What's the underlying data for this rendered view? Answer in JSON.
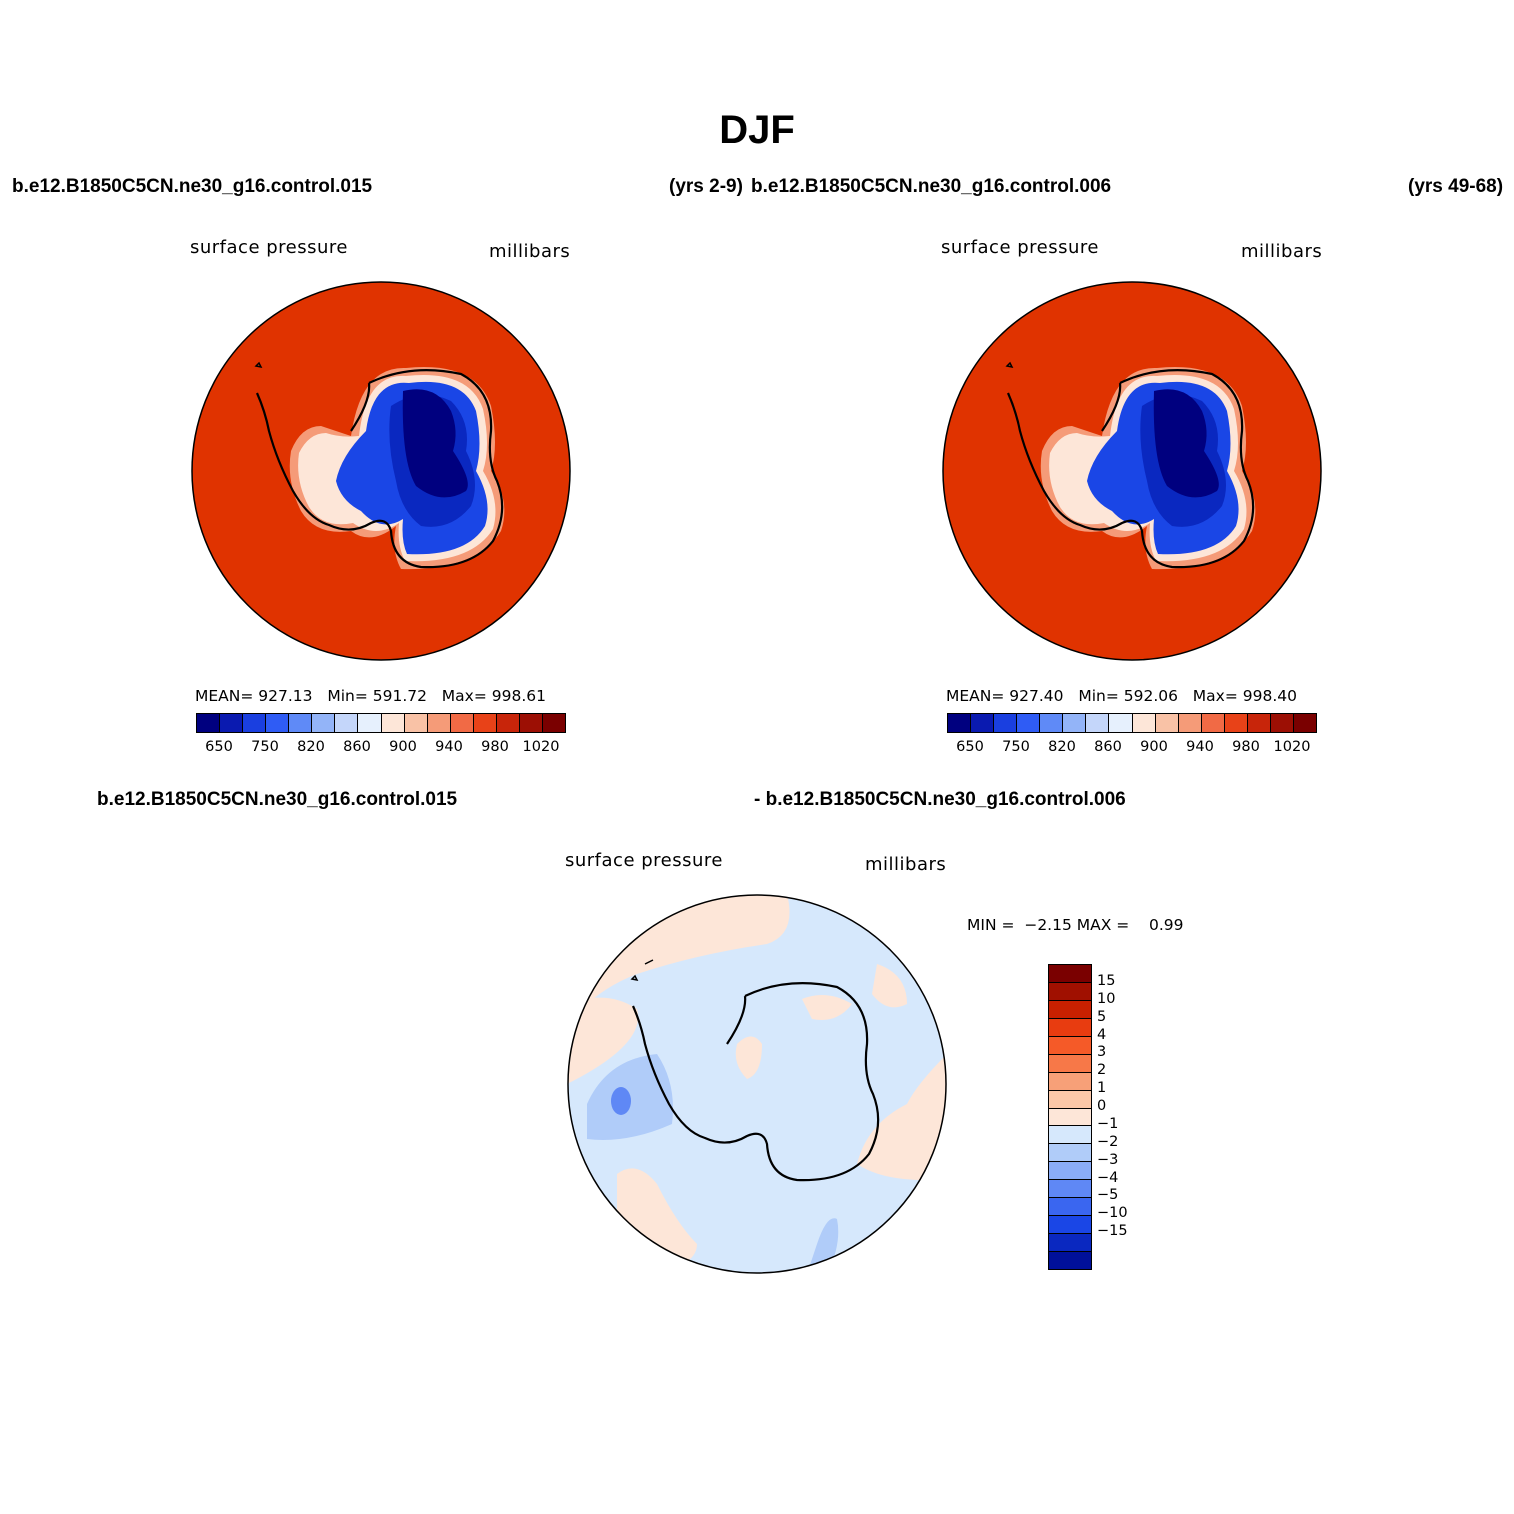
{
  "title": "DJF",
  "case1": "b.e12.B1850C5CN.ne30_g16.control.015",
  "years1": "(yrs 2-9)",
  "case2": "b.e12.B1850C5CN.ne30_g16.control.006",
  "years2": "(yrs 49-68)",
  "diff_case1": "b.e12.B1850C5CN.ne30_g16.control.015",
  "diff_case2": "- b.e12.B1850C5CN.ne30_g16.control.006",
  "panels": [
    {
      "variable": "surface pressure",
      "units": "millibars",
      "stats": {
        "mean_label": "MEAN=",
        "mean": "927.13",
        "min_label": "Min=",
        "min": "591.72",
        "max_label": "Max=",
        "max": "998.61"
      }
    },
    {
      "variable": "surface pressure",
      "units": "millibars",
      "stats": {
        "mean_label": "MEAN=",
        "mean": "927.40",
        "min_label": "Min=",
        "min": "592.06",
        "max_label": "Max=",
        "max": "998.40"
      }
    }
  ],
  "diff_panel": {
    "variable": "surface pressure",
    "units": "millibars",
    "min_label": "MIN =",
    "min": "−2.15",
    "max_label": "MAX =",
    "max": "0.99"
  },
  "abs_colorbar": {
    "colors": [
      "#00007f",
      "#0a1ab0",
      "#1a3fe0",
      "#2f5cf5",
      "#5f8af7",
      "#93b4f8",
      "#c4d6fa",
      "#e6f0fd",
      "#fde6d8",
      "#f9c2a6",
      "#f59b78",
      "#f16a45",
      "#e84218",
      "#c8250a",
      "#9c0f04",
      "#7a0000"
    ],
    "tick_labels": [
      "650",
      "750",
      "820",
      "860",
      "900",
      "940",
      "980",
      "1020"
    ]
  },
  "diff_colorbar": {
    "colors": [
      "#7a0000",
      "#a01000",
      "#c82000",
      "#e83c10",
      "#f55a28",
      "#f77848",
      "#f7a078",
      "#fcc8a8",
      "#fde6d8",
      "#d6e8fc",
      "#b0ccf9",
      "#8aacf7",
      "#5f88f5",
      "#3a66f0",
      "#1a46e6",
      "#0a28c0",
      "#00109a"
    ],
    "tick_labels": [
      "15",
      "10",
      "5",
      "4",
      "3",
      "2",
      "1",
      "0",
      "−1",
      "−2",
      "−3",
      "−4",
      "−5",
      "−10",
      "−15"
    ]
  },
  "map_colors": {
    "ocean": "#e03300",
    "coast_light": "#fde6d8",
    "coast_mid": "#f59b78",
    "ice_blue": "#1a46e6",
    "ice_mid": "#0a28c0",
    "ice_deep": "#00007f",
    "diff_bg": "#d6e8fc",
    "diff_pos": "#fde6d8",
    "diff_neg1": "#b0ccf9",
    "diff_neg2": "#5f88f5"
  }
}
